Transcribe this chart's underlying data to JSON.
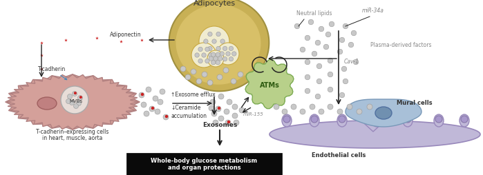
{
  "bg_color": "#ffffff",
  "fig_width": 6.99,
  "fig_height": 2.54,
  "title": "Adipocytes",
  "box_text_line1": "Whole-body glucose metabolism",
  "box_text_line2": "and organ protections",
  "label_tcadherin_cells_line1": "T-cadherin–expressing cells",
  "label_tcadherin_cells_line2": "in heart, muscle, aorta",
  "label_mvbs": "MVBs",
  "label_tcadherin": "T-cadherin",
  "label_exosome_efflux": "↑Exosome efflux",
  "label_ceramide": "↓Ceramide\naccumulation",
  "label_exosomes": "Exosomes",
  "label_atms": "ATMs",
  "label_mir155": "miR-155",
  "label_adiponectin": "Adiponectin",
  "label_neutral_lipids": "Neutral lipids",
  "label_mir34a": "miR-34a",
  "label_cav1": "Cav-1",
  "label_plasma": "Plasma-derived factors",
  "label_endothelial": "Endothelial cells",
  "label_mural": "Mural cells",
  "muscle_cell_color": "#d4a09a",
  "muscle_cell_edge": "#b08080",
  "atm_color": "#b8d08a",
  "atm_edge": "#7aaa50",
  "endothelial_color": "#c0b8d8",
  "endothelial_edge": "#9888bb",
  "mural_color": "#90b0cc",
  "mural_nucleus_color": "#6080aa",
  "exosome_color": "#c8c8c8",
  "exosome_red_color": "#cc2222",
  "box_bg": "#0a0a0a",
  "box_text_color": "#ffffff",
  "arrow_color": "#222222",
  "text_color_dark": "#333333",
  "text_color_gray": "#888888"
}
